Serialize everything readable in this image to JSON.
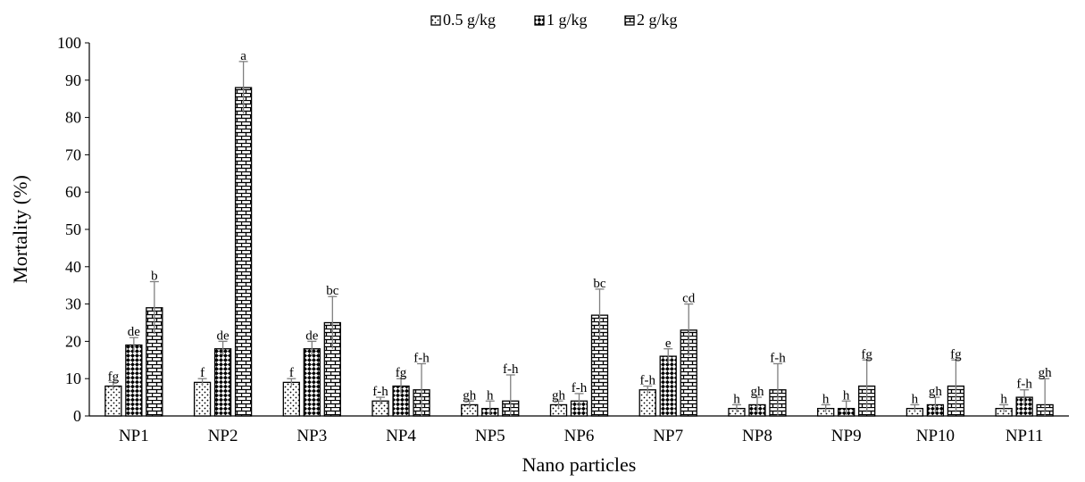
{
  "chart_data": {
    "type": "bar",
    "title": "",
    "xlabel": "Nano particles",
    "ylabel": "Mortality (%)",
    "ylim": [
      0,
      100
    ],
    "yticks": [
      0,
      10,
      20,
      30,
      40,
      50,
      60,
      70,
      80,
      90,
      100
    ],
    "grid": false,
    "legend_position": "top",
    "categories": [
      "NP1",
      "NP2",
      "NP3",
      "NP4",
      "NP5",
      "NP6",
      "NP7",
      "NP8",
      "NP9",
      "NP10",
      "NP11"
    ],
    "series": [
      {
        "name": "0.5 g/kg",
        "pattern": "dots",
        "values": [
          8,
          9,
          9,
          4,
          3,
          3,
          7,
          2,
          2,
          2,
          2
        ],
        "errors": [
          1,
          1,
          1,
          1,
          1,
          1,
          1,
          1,
          1,
          1,
          1
        ],
        "labels": [
          "fg",
          "f",
          "f",
          "f-h",
          "gh",
          "gh",
          "f-h",
          "h",
          "h",
          "h",
          "h"
        ]
      },
      {
        "name": "1 g/kg",
        "pattern": "diagonal-checker",
        "values": [
          19,
          18,
          18,
          8,
          2,
          4,
          16,
          3,
          2,
          3,
          5
        ],
        "errors": [
          2,
          2,
          2,
          2,
          2,
          2,
          2,
          2,
          2,
          2,
          2
        ],
        "labels": [
          "de",
          "de",
          "de",
          "fg",
          "h",
          "f-h",
          "e",
          "gh",
          "h",
          "gh",
          "f-h"
        ]
      },
      {
        "name": "2 g/kg",
        "pattern": "brick",
        "values": [
          29,
          88,
          25,
          7,
          4,
          27,
          23,
          7,
          8,
          8,
          3
        ],
        "errors": [
          7,
          7,
          7,
          7,
          7,
          7,
          7,
          7,
          7,
          7,
          7
        ],
        "labels": [
          "b",
          "a",
          "bc",
          "f-h",
          "f-h",
          "bc",
          "cd",
          "f-h",
          "fg",
          "fg",
          "gh"
        ]
      }
    ]
  }
}
